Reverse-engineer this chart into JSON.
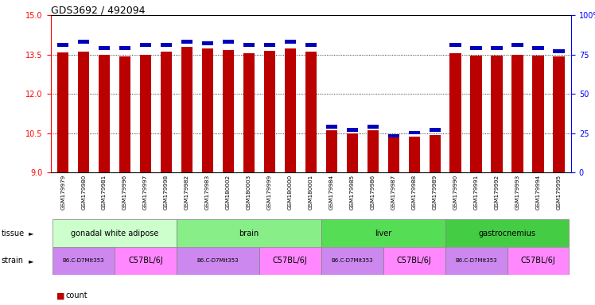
{
  "title": "GDS3692 / 492094",
  "samples": [
    "GSM179979",
    "GSM179980",
    "GSM179981",
    "GSM179996",
    "GSM179997",
    "GSM179998",
    "GSM179982",
    "GSM179983",
    "GSM180002",
    "GSM180003",
    "GSM179999",
    "GSM180000",
    "GSM180001",
    "GSM179984",
    "GSM179985",
    "GSM179986",
    "GSM179987",
    "GSM179988",
    "GSM179989",
    "GSM179990",
    "GSM179991",
    "GSM179992",
    "GSM179993",
    "GSM179994",
    "GSM179995"
  ],
  "counts": [
    13.58,
    13.62,
    13.48,
    13.42,
    13.48,
    13.62,
    13.78,
    13.72,
    13.68,
    13.56,
    13.65,
    13.72,
    13.62,
    10.62,
    10.5,
    10.62,
    10.42,
    10.35,
    10.42,
    13.55,
    13.45,
    13.45,
    13.48,
    13.45,
    13.42
  ],
  "percentiles": [
    80,
    82,
    78,
    78,
    80,
    80,
    82,
    81,
    82,
    80,
    80,
    82,
    80,
    28,
    26,
    28,
    22,
    24,
    26,
    80,
    78,
    78,
    80,
    78,
    76
  ],
  "tissue_groups": [
    {
      "label": "gonadal white adipose",
      "start": 0,
      "end": 6,
      "color": "#ccffcc"
    },
    {
      "label": "brain",
      "start": 6,
      "end": 13,
      "color": "#88ee88"
    },
    {
      "label": "liver",
      "start": 13,
      "end": 19,
      "color": "#55dd55"
    },
    {
      "label": "gastrocnemius",
      "start": 19,
      "end": 25,
      "color": "#44cc44"
    }
  ],
  "strain_groups": [
    {
      "label": "B6.C-D7Mit353",
      "start": 0,
      "end": 3
    },
    {
      "label": "C57BL/6J",
      "start": 3,
      "end": 6
    },
    {
      "label": "B6.C-D7Mit353",
      "start": 6,
      "end": 10
    },
    {
      "label": "C57BL/6J",
      "start": 10,
      "end": 13
    },
    {
      "label": "B6.C-D7Mit353",
      "start": 13,
      "end": 16
    },
    {
      "label": "C57BL/6J",
      "start": 16,
      "end": 19
    },
    {
      "label": "B6.C-D7Mit353",
      "start": 19,
      "end": 22
    },
    {
      "label": "C57BL/6J",
      "start": 22,
      "end": 25
    }
  ],
  "strain_color_b6": "#cc88ee",
  "strain_color_c57": "#ff88ff",
  "ylim_left": [
    9,
    15
  ],
  "ylim_right": [
    0,
    100
  ],
  "yticks_left": [
    9,
    10.5,
    12,
    13.5,
    15
  ],
  "yticks_right": [
    0,
    25,
    50,
    75,
    100
  ],
  "bar_color": "#bb0000",
  "pct_color": "#0000bb",
  "bar_width": 0.55
}
